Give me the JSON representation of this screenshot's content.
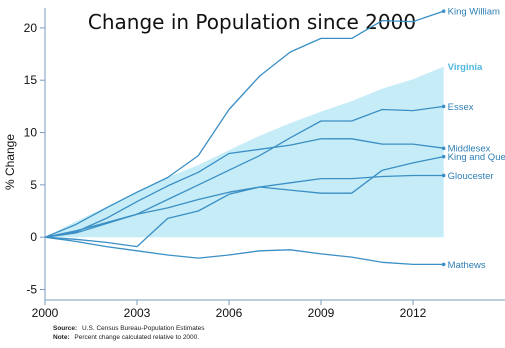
{
  "chart_data": {
    "type": "line",
    "title": "Change in Population since 2000",
    "ylabel": "% Change",
    "xlabel": "",
    "xlim": [
      2000,
      2015
    ],
    "ylim": [
      -6,
      21.9
    ],
    "x_ticks": [
      2000,
      2003,
      2006,
      2009,
      2012
    ],
    "y_ticks": [
      -5,
      0,
      5,
      10,
      15,
      20
    ],
    "grid": false,
    "legend": "direct-labels-right",
    "area_series": {
      "name": "Virginia",
      "color": "#c6ecf7",
      "points": [
        [
          2000,
          0
        ],
        [
          2001,
          1.5
        ],
        [
          2002,
          2.9
        ],
        [
          2003,
          4.4
        ],
        [
          2004,
          5.7
        ],
        [
          2005,
          6.9
        ],
        [
          2006,
          8.3
        ],
        [
          2007,
          9.7
        ],
        [
          2008,
          10.9
        ],
        [
          2009,
          12.0
        ],
        [
          2010,
          13.0
        ],
        [
          2011,
          14.2
        ],
        [
          2012,
          15.1
        ],
        [
          2013,
          16.3
        ]
      ]
    },
    "series": [
      {
        "name": "King William",
        "color": "#3a8fc5",
        "points": [
          [
            2000,
            0
          ],
          [
            2001,
            1.2
          ],
          [
            2002,
            2.8
          ],
          [
            2003,
            4.3
          ],
          [
            2004,
            5.7
          ],
          [
            2005,
            7.8
          ],
          [
            2006,
            12.2
          ],
          [
            2007,
            15.4
          ],
          [
            2008,
            17.7
          ],
          [
            2009,
            19.0
          ],
          [
            2010,
            19.0
          ],
          [
            2011,
            20.7
          ],
          [
            2012,
            20.6
          ],
          [
            2013,
            21.6
          ]
        ]
      },
      {
        "name": "Essex",
        "color": "#3a8fc5",
        "points": [
          [
            2000,
            0
          ],
          [
            2001,
            0.4
          ],
          [
            2002,
            1.3
          ],
          [
            2003,
            2.2
          ],
          [
            2004,
            3.6
          ],
          [
            2005,
            5.0
          ],
          [
            2006,
            6.4
          ],
          [
            2007,
            7.8
          ],
          [
            2008,
            9.5
          ],
          [
            2009,
            11.1
          ],
          [
            2010,
            11.1
          ],
          [
            2011,
            12.2
          ],
          [
            2012,
            12.1
          ],
          [
            2013,
            12.5
          ]
        ]
      },
      {
        "name": "Middlesex",
        "color": "#3a8fc5",
        "points": [
          [
            2000,
            0
          ],
          [
            2001,
            0.5
          ],
          [
            2002,
            1.8
          ],
          [
            2003,
            3.4
          ],
          [
            2004,
            4.9
          ],
          [
            2005,
            6.2
          ],
          [
            2006,
            8.0
          ],
          [
            2007,
            8.4
          ],
          [
            2008,
            8.8
          ],
          [
            2009,
            9.4
          ],
          [
            2010,
            9.4
          ],
          [
            2011,
            8.9
          ],
          [
            2012,
            8.9
          ],
          [
            2013,
            8.5
          ]
        ]
      },
      {
        "name": "King and Queen",
        "color": "#3a8fc5",
        "points": [
          [
            2000,
            0
          ],
          [
            2001,
            -0.2
          ],
          [
            2002,
            -0.5
          ],
          [
            2003,
            -0.9
          ],
          [
            2004,
            1.8
          ],
          [
            2005,
            2.5
          ],
          [
            2006,
            4.1
          ],
          [
            2007,
            4.8
          ],
          [
            2008,
            4.5
          ],
          [
            2009,
            4.2
          ],
          [
            2010,
            4.2
          ],
          [
            2011,
            6.4
          ],
          [
            2012,
            7.1
          ],
          [
            2013,
            7.7
          ]
        ]
      },
      {
        "name": "Gloucester",
        "color": "#3a8fc5",
        "points": [
          [
            2000,
            0
          ],
          [
            2001,
            0.6
          ],
          [
            2002,
            1.4
          ],
          [
            2003,
            2.2
          ],
          [
            2004,
            2.8
          ],
          [
            2005,
            3.6
          ],
          [
            2006,
            4.3
          ],
          [
            2007,
            4.8
          ],
          [
            2008,
            5.2
          ],
          [
            2009,
            5.6
          ],
          [
            2010,
            5.6
          ],
          [
            2011,
            5.8
          ],
          [
            2012,
            5.9
          ],
          [
            2013,
            5.9
          ]
        ]
      },
      {
        "name": "Mathews",
        "color": "#3a8fc5",
        "points": [
          [
            2000,
            0
          ],
          [
            2001,
            -0.4
          ],
          [
            2002,
            -0.9
          ],
          [
            2003,
            -1.3
          ],
          [
            2004,
            -1.7
          ],
          [
            2005,
            -2.0
          ],
          [
            2006,
            -1.7
          ],
          [
            2007,
            -1.3
          ],
          [
            2008,
            -1.2
          ],
          [
            2009,
            -1.6
          ],
          [
            2010,
            -1.9
          ],
          [
            2011,
            -2.4
          ],
          [
            2012,
            -2.6
          ],
          [
            2013,
            -2.6
          ]
        ]
      }
    ],
    "series_label_color": "#2f7fb5",
    "highlight_label": "Virginia",
    "highlight_label_color": "#4fb8e0",
    "axis_color": "#7a9bbf"
  },
  "notes": {
    "source_label": "Source:",
    "source_text": "U.S. Census Bureau-Population Estimates",
    "note_label": "Note:",
    "note_text": "Percent change calculated relative to 2000."
  }
}
